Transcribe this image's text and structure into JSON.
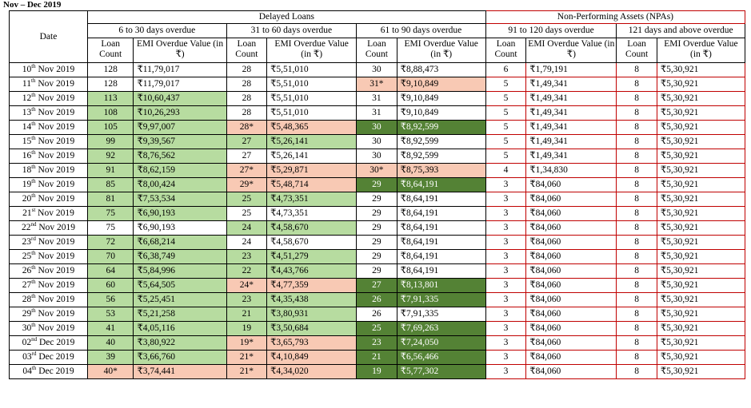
{
  "caption": "Nov – Dec 2019",
  "headers": {
    "date": "Date",
    "delayed": "Delayed Loans",
    "npa": "Non-Performing Assets (NPAs)",
    "groups": [
      "6 to 30 days overdue",
      "31 to 60 days overdue",
      "61 to 90 days overdue",
      "91 to 120 days overdue",
      "121 days and above overdue"
    ],
    "loan_count": "Loan Count",
    "emi_value_g1": "EMI Overdue Value (in ₹)",
    "emi_value": "EMI Overdue Value (in ₹)"
  },
  "rows": [
    {
      "day": "10",
      "sfx": "th",
      "mon": "Nov 2019",
      "v": [
        [
          "128",
          ""
        ],
        [
          "₹11,79,017",
          ""
        ],
        [
          "28",
          ""
        ],
        [
          "₹5,51,010",
          ""
        ],
        [
          "30",
          ""
        ],
        [
          "₹8,88,473",
          ""
        ],
        [
          "6",
          ""
        ],
        [
          "₹1,79,191",
          ""
        ],
        [
          "8",
          ""
        ],
        [
          "₹5,30,921",
          ""
        ]
      ]
    },
    {
      "day": "11",
      "sfx": "th",
      "mon": "Nov 2019",
      "v": [
        [
          "128",
          ""
        ],
        [
          "₹11,79,017",
          ""
        ],
        [
          "28",
          ""
        ],
        [
          "₹5,51,010",
          ""
        ],
        [
          "31*",
          "pk"
        ],
        [
          "₹9,10,849",
          "pk"
        ],
        [
          "5",
          ""
        ],
        [
          "₹1,49,341",
          ""
        ],
        [
          "8",
          ""
        ],
        [
          "₹5,30,921",
          ""
        ]
      ]
    },
    {
      "day": "12",
      "sfx": "th",
      "mon": "Nov 2019",
      "v": [
        [
          "113",
          "lg"
        ],
        [
          "₹10,60,437",
          "lg"
        ],
        [
          "28",
          ""
        ],
        [
          "₹5,51,010",
          ""
        ],
        [
          "31",
          ""
        ],
        [
          "₹9,10,849",
          ""
        ],
        [
          "5",
          ""
        ],
        [
          "₹1,49,341",
          ""
        ],
        [
          "8",
          ""
        ],
        [
          "₹5,30,921",
          ""
        ]
      ]
    },
    {
      "day": "13",
      "sfx": "th",
      "mon": "Nov 2019",
      "v": [
        [
          "108",
          "lg"
        ],
        [
          "₹10,26,293",
          "lg"
        ],
        [
          "28",
          ""
        ],
        [
          "₹5,51,010",
          ""
        ],
        [
          "31",
          ""
        ],
        [
          "₹9,10,849",
          ""
        ],
        [
          "5",
          ""
        ],
        [
          "₹1,49,341",
          ""
        ],
        [
          "8",
          ""
        ],
        [
          "₹5,30,921",
          ""
        ]
      ]
    },
    {
      "day": "14",
      "sfx": "th",
      "mon": "Nov 2019",
      "v": [
        [
          "105",
          "lg"
        ],
        [
          "₹9,97,007",
          "lg"
        ],
        [
          "28*",
          "pk"
        ],
        [
          "₹5,48,365",
          "pk"
        ],
        [
          "30",
          "dg"
        ],
        [
          "₹8,92,599",
          "dg"
        ],
        [
          "5",
          ""
        ],
        [
          "₹1,49,341",
          ""
        ],
        [
          "8",
          ""
        ],
        [
          "₹5,30,921",
          ""
        ]
      ]
    },
    {
      "day": "15",
      "sfx": "th",
      "mon": "Nov 2019",
      "v": [
        [
          "99",
          "lg"
        ],
        [
          "₹9,39,567",
          "lg"
        ],
        [
          "27",
          "lg"
        ],
        [
          "₹5,26,141",
          "lg"
        ],
        [
          "30",
          ""
        ],
        [
          "₹8,92,599",
          ""
        ],
        [
          "5",
          ""
        ],
        [
          "₹1,49,341",
          ""
        ],
        [
          "8",
          ""
        ],
        [
          "₹5,30,921",
          ""
        ]
      ]
    },
    {
      "day": "16",
      "sfx": "th",
      "mon": "Nov 2019",
      "v": [
        [
          "92",
          "lg"
        ],
        [
          "₹8,76,562",
          "lg"
        ],
        [
          "27",
          ""
        ],
        [
          "₹5,26,141",
          ""
        ],
        [
          "30",
          ""
        ],
        [
          "₹8,92,599",
          ""
        ],
        [
          "5",
          ""
        ],
        [
          "₹1,49,341",
          ""
        ],
        [
          "8",
          ""
        ],
        [
          "₹5,30,921",
          ""
        ]
      ]
    },
    {
      "day": "18",
      "sfx": "th",
      "mon": "Nov 2019",
      "v": [
        [
          "91",
          "lg"
        ],
        [
          "₹8,62,159",
          "lg"
        ],
        [
          "27*",
          "pk"
        ],
        [
          "₹5,29,871",
          "pk"
        ],
        [
          "30*",
          "pk"
        ],
        [
          "₹8,75,393",
          "pk"
        ],
        [
          "4",
          ""
        ],
        [
          "₹1,34,830",
          ""
        ],
        [
          "8",
          ""
        ],
        [
          "₹5,30,921",
          ""
        ]
      ]
    },
    {
      "day": "19",
      "sfx": "th",
      "mon": "Nov 2019",
      "v": [
        [
          "85",
          "lg"
        ],
        [
          "₹8,00,424",
          "lg"
        ],
        [
          "29*",
          "pk"
        ],
        [
          "₹5,48,714",
          "pk"
        ],
        [
          "29",
          "dg"
        ],
        [
          "₹8,64,191",
          "dg"
        ],
        [
          "3",
          ""
        ],
        [
          "₹84,060",
          ""
        ],
        [
          "8",
          ""
        ],
        [
          "₹5,30,921",
          ""
        ]
      ]
    },
    {
      "day": "20",
      "sfx": "th",
      "mon": "Nov 2019",
      "v": [
        [
          "81",
          "lg"
        ],
        [
          "₹7,53,534",
          "lg"
        ],
        [
          "25",
          "lg"
        ],
        [
          "₹4,73,351",
          "lg"
        ],
        [
          "29",
          ""
        ],
        [
          "₹8,64,191",
          ""
        ],
        [
          "3",
          ""
        ],
        [
          "₹84,060",
          ""
        ],
        [
          "8",
          ""
        ],
        [
          "₹5,30,921",
          ""
        ]
      ]
    },
    {
      "day": "21",
      "sfx": "st",
      "mon": "Nov 2019",
      "v": [
        [
          "75",
          "lg"
        ],
        [
          "₹6,90,193",
          "lg"
        ],
        [
          "25",
          ""
        ],
        [
          "₹4,73,351",
          ""
        ],
        [
          "29",
          ""
        ],
        [
          "₹8,64,191",
          ""
        ],
        [
          "3",
          ""
        ],
        [
          "₹84,060",
          ""
        ],
        [
          "8",
          ""
        ],
        [
          "₹5,30,921",
          ""
        ]
      ]
    },
    {
      "day": "22",
      "sfx": "nd",
      "mon": "Nov 2019",
      "v": [
        [
          "75",
          ""
        ],
        [
          "₹6,90,193",
          ""
        ],
        [
          "24",
          "lg"
        ],
        [
          "₹4,58,670",
          "lg"
        ],
        [
          "29",
          ""
        ],
        [
          "₹8,64,191",
          ""
        ],
        [
          "3",
          ""
        ],
        [
          "₹84,060",
          ""
        ],
        [
          "8",
          ""
        ],
        [
          "₹5,30,921",
          ""
        ]
      ]
    },
    {
      "day": "23",
      "sfx": "rd",
      "mon": "Nov 2019",
      "v": [
        [
          "72",
          "lg"
        ],
        [
          "₹6,68,214",
          "lg"
        ],
        [
          "24",
          ""
        ],
        [
          "₹4,58,670",
          ""
        ],
        [
          "29",
          ""
        ],
        [
          "₹8,64,191",
          ""
        ],
        [
          "3",
          ""
        ],
        [
          "₹84,060",
          ""
        ],
        [
          "8",
          ""
        ],
        [
          "₹5,30,921",
          ""
        ]
      ]
    },
    {
      "day": "25",
      "sfx": "th",
      "mon": "Nov 2019",
      "v": [
        [
          "70",
          "lg"
        ],
        [
          "₹6,38,749",
          "lg"
        ],
        [
          "23",
          "lg"
        ],
        [
          "₹4,51,279",
          "lg"
        ],
        [
          "29",
          ""
        ],
        [
          "₹8,64,191",
          ""
        ],
        [
          "3",
          ""
        ],
        [
          "₹84,060",
          ""
        ],
        [
          "8",
          ""
        ],
        [
          "₹5,30,921",
          ""
        ]
      ]
    },
    {
      "day": "26",
      "sfx": "th",
      "mon": "Nov 2019",
      "v": [
        [
          "64",
          "lg"
        ],
        [
          "₹5,84,996",
          "lg"
        ],
        [
          "22",
          "lg"
        ],
        [
          "₹4,43,766",
          "lg"
        ],
        [
          "29",
          ""
        ],
        [
          "₹8,64,191",
          ""
        ],
        [
          "3",
          ""
        ],
        [
          "₹84,060",
          ""
        ],
        [
          "8",
          ""
        ],
        [
          "₹5,30,921",
          ""
        ]
      ]
    },
    {
      "day": "27",
      "sfx": "th",
      "mon": "Nov 2019",
      "v": [
        [
          "60",
          "lg"
        ],
        [
          "₹5,64,505",
          "lg"
        ],
        [
          "24*",
          "pk"
        ],
        [
          "₹4,77,359",
          "pk"
        ],
        [
          "27",
          "dg"
        ],
        [
          "₹8,13,801",
          "dg"
        ],
        [
          "3",
          ""
        ],
        [
          "₹84,060",
          ""
        ],
        [
          "8",
          ""
        ],
        [
          "₹5,30,921",
          ""
        ]
      ]
    },
    {
      "day": "28",
      "sfx": "th",
      "mon": "Nov 2019",
      "v": [
        [
          "56",
          "lg"
        ],
        [
          "₹5,25,451",
          "lg"
        ],
        [
          "23",
          "lg"
        ],
        [
          "₹4,35,438",
          "lg"
        ],
        [
          "26",
          "dg"
        ],
        [
          "₹7,91,335",
          "dg"
        ],
        [
          "3",
          ""
        ],
        [
          "₹84,060",
          ""
        ],
        [
          "8",
          ""
        ],
        [
          "₹5,30,921",
          ""
        ]
      ]
    },
    {
      "day": "29",
      "sfx": "th",
      "mon": "Nov 2019",
      "v": [
        [
          "53",
          "lg"
        ],
        [
          "₹5,21,258",
          "lg"
        ],
        [
          "21",
          "lg"
        ],
        [
          "₹3,80,931",
          "lg"
        ],
        [
          "26",
          ""
        ],
        [
          "₹7,91,335",
          ""
        ],
        [
          "3",
          ""
        ],
        [
          "₹84,060",
          ""
        ],
        [
          "8",
          ""
        ],
        [
          "₹5,30,921",
          ""
        ]
      ]
    },
    {
      "day": "30",
      "sfx": "th",
      "mon": "Nov 2019",
      "v": [
        [
          "41",
          "lg"
        ],
        [
          "₹4,05,116",
          "lg"
        ],
        [
          "19",
          "lg"
        ],
        [
          "₹3,50,684",
          "lg"
        ],
        [
          "25",
          "dg"
        ],
        [
          "₹7,69,263",
          "dg"
        ],
        [
          "3",
          ""
        ],
        [
          "₹84,060",
          ""
        ],
        [
          "8",
          ""
        ],
        [
          "₹5,30,921",
          ""
        ]
      ]
    },
    {
      "day": "02",
      "sfx": "nd",
      "mon": "Dec 2019",
      "v": [
        [
          "40",
          "lg"
        ],
        [
          "₹3,80,922",
          "lg"
        ],
        [
          "19*",
          "pk"
        ],
        [
          "₹3,65,793",
          "pk"
        ],
        [
          "23",
          "dg"
        ],
        [
          "₹7,24,050",
          "dg"
        ],
        [
          "3",
          ""
        ],
        [
          "₹84,060",
          ""
        ],
        [
          "8",
          ""
        ],
        [
          "₹5,30,921",
          ""
        ]
      ]
    },
    {
      "day": "03",
      "sfx": "rd",
      "mon": "Dec 2019",
      "v": [
        [
          "39",
          "lg"
        ],
        [
          "₹3,66,760",
          "lg"
        ],
        [
          "21*",
          "pk"
        ],
        [
          "₹4,10,849",
          "pk"
        ],
        [
          "21",
          "dg"
        ],
        [
          "₹6,56,466",
          "dg"
        ],
        [
          "3",
          ""
        ],
        [
          "₹84,060",
          ""
        ],
        [
          "8",
          ""
        ],
        [
          "₹5,30,921",
          ""
        ]
      ]
    },
    {
      "day": "04",
      "sfx": "th",
      "mon": "Dec 2019",
      "v": [
        [
          "40*",
          "pk"
        ],
        [
          "₹3,74,441",
          "pk"
        ],
        [
          "21*",
          "pk"
        ],
        [
          "₹4,34,020",
          "pk"
        ],
        [
          "19",
          "dg"
        ],
        [
          "₹5,77,302",
          "dg"
        ],
        [
          "3",
          ""
        ],
        [
          "₹84,060",
          ""
        ],
        [
          "8",
          ""
        ],
        [
          "₹5,30,921",
          ""
        ]
      ]
    }
  ],
  "colors": {
    "light_green": "#b7dca0",
    "dark_green": "#548235",
    "pink": "#f8c9b4",
    "npa_border": "#c00000"
  }
}
